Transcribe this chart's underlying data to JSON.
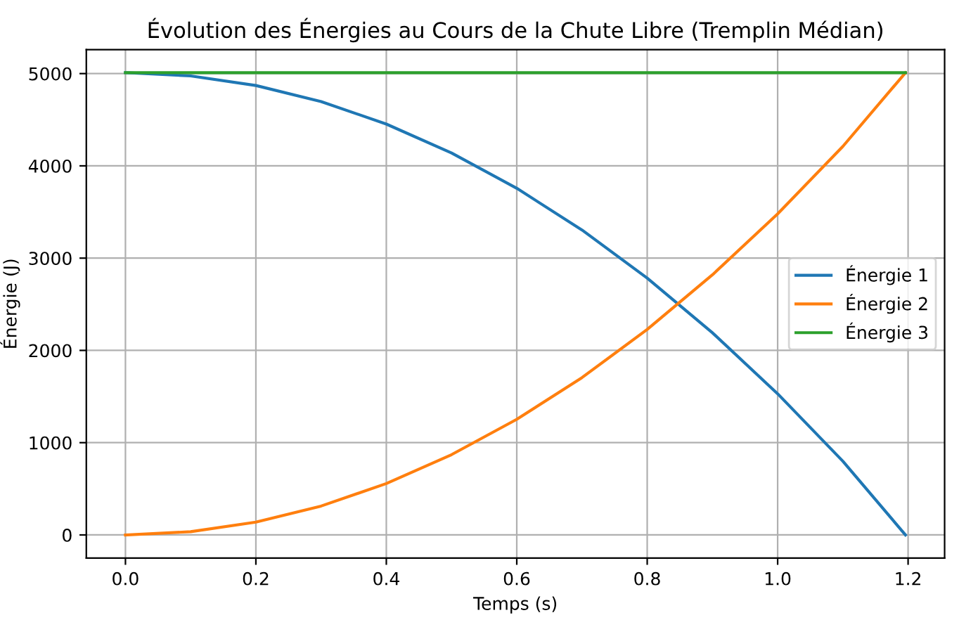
{
  "chart_data": {
    "type": "line",
    "title": "Évolution des Énergies au Cours de la Chute Libre (Tremplin Médian)",
    "xlabel": "Temps (s)",
    "ylabel": "Énergie (J)",
    "x": [
      0,
      0.1,
      0.2,
      0.3,
      0.4,
      0.5,
      0.6,
      0.7,
      0.8,
      0.9,
      1.0,
      1.1,
      1.196
    ],
    "series": [
      {
        "name": "Énergie 1",
        "color": "#1f77b4",
        "values": [
          5010,
          4975,
          4871,
          4697,
          4453,
          4140,
          3757,
          3305,
          2783,
          2191,
          1530,
          799,
          0
        ]
      },
      {
        "name": "Énergie 2",
        "color": "#ff7f0e",
        "values": [
          0,
          35,
          139,
          313,
          557,
          870,
          1253,
          1705,
          2227,
          2819,
          3480,
          4211,
          5010
        ]
      },
      {
        "name": "Énergie 3",
        "color": "#2ca02c",
        "values": [
          5010,
          5010,
          5010,
          5010,
          5010,
          5010,
          5010,
          5010,
          5010,
          5010,
          5010,
          5010,
          5010
        ]
      }
    ],
    "xlim": [
      -0.06,
      1.256
    ],
    "ylim": [
      -250,
      5260
    ],
    "xticks": [
      {
        "value": 0,
        "label": "0.0"
      },
      0.2,
      0.4,
      0.6,
      0.8,
      {
        "value": 1,
        "label": "1.0"
      },
      1.2
    ],
    "yticks": [
      0,
      1000,
      2000,
      3000,
      4000,
      5000
    ],
    "grid": true,
    "legend": "center right",
    "marker": "none",
    "line_style": "solid"
  }
}
